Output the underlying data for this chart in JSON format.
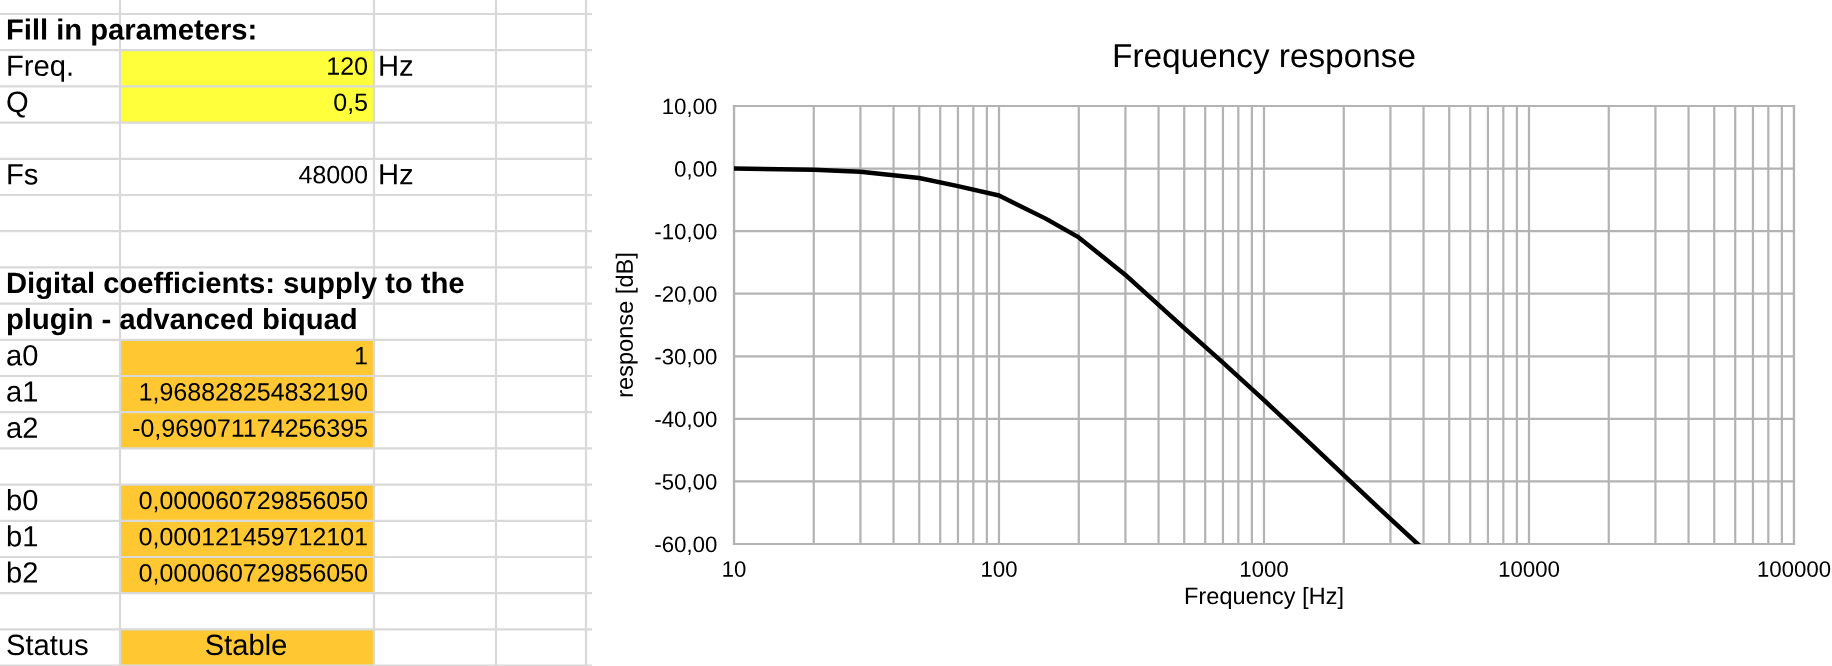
{
  "chart_data": [
    {
      "type": "other",
      "annotations": [
        "Fill in parameters:",
        "Freq.",
        "120",
        "Hz",
        "Q",
        "0,5",
        "Fs",
        "48000",
        "Hz",
        "Digital coefficients: supply to the",
        "plugin - advanced biquad",
        "a0",
        "1",
        "a1",
        "1,968828254832190",
        "a2",
        "-0,969071174256395",
        "b0",
        "0,000060729856050",
        "b1",
        "0,000121459712101",
        "b2",
        "0,000060729856050",
        "Status",
        "Stable"
      ]
    },
    {
      "type": "line",
      "title": "Frequency response",
      "xlabel": "Frequency [Hz]",
      "ylabel": "response [dB]",
      "log": "x",
      "grid": true,
      "marker": "none",
      "line_style": "solid",
      "x": [
        10,
        20,
        30,
        50,
        70,
        100,
        150,
        200,
        300,
        500,
        700,
        1000,
        1500,
        2000,
        3000,
        3800
      ],
      "series": [
        {
          "color": "#000000",
          "values": [
            0,
            -0.2,
            -0.5,
            -1.5,
            -2.8,
            -4.3,
            -8,
            -11,
            -17,
            -25.5,
            -31,
            -37,
            -44,
            -49,
            -56,
            -60
          ]
        }
      ],
      "xlim": [
        10,
        100000
      ],
      "xticks": [
        10,
        100,
        1000,
        10000,
        100000
      ],
      "ylim": [
        -60,
        10
      ],
      "yticks": [
        {
          "value": -60,
          "label": "-60,00"
        },
        {
          "value": -50,
          "label": "-50,00"
        },
        {
          "value": -40,
          "label": "-40,00"
        },
        {
          "value": -30,
          "label": "-30,00"
        },
        {
          "value": -20,
          "label": "-20,00"
        },
        {
          "value": -10,
          "label": "-10,00"
        },
        {
          "value": 0,
          "label": "0,00"
        },
        {
          "value": 10,
          "label": "10,00"
        }
      ]
    }
  ]
}
